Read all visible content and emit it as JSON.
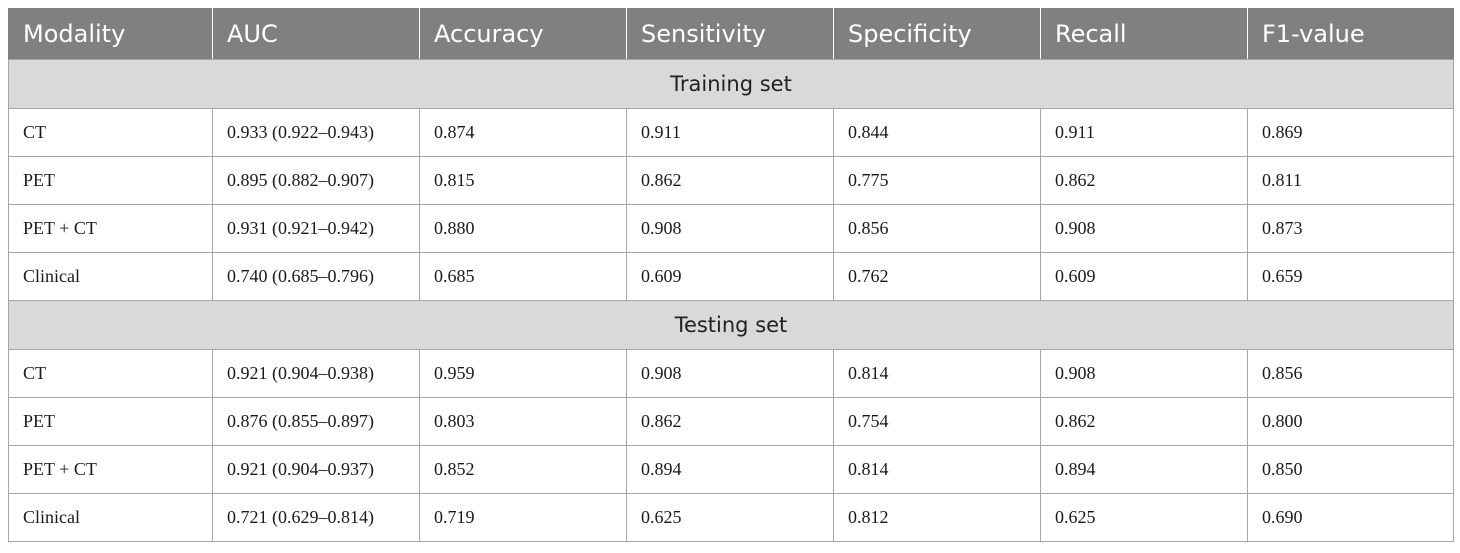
{
  "table": {
    "columns": [
      "Modality",
      "AUC",
      "Accuracy",
      "Sensitivity",
      "Specificity",
      "Recall",
      "F1-value"
    ],
    "sections": [
      {
        "title": "Training set",
        "rows": [
          [
            "CT",
            "0.933 (0.922–0.943)",
            "0.874",
            "0.911",
            "0.844",
            "0.911",
            "0.869"
          ],
          [
            "PET",
            "0.895 (0.882–0.907)",
            "0.815",
            "0.862",
            "0.775",
            "0.862",
            "0.811"
          ],
          [
            "PET + CT",
            "0.931 (0.921–0.942)",
            "0.880",
            "0.908",
            "0.856",
            "0.908",
            "0.873"
          ],
          [
            "Clinical",
            "0.740 (0.685–0.796)",
            "0.685",
            "0.609",
            "0.762",
            "0.609",
            "0.659"
          ]
        ]
      },
      {
        "title": "Testing set",
        "rows": [
          [
            "CT",
            "0.921 (0.904–0.938)",
            "0.959",
            "0.908",
            "0.814",
            "0.908",
            "0.856"
          ],
          [
            "PET",
            "0.876 (0.855–0.897)",
            "0.803",
            "0.862",
            "0.754",
            "0.862",
            "0.800"
          ],
          [
            "PET + CT",
            "0.921 (0.904–0.937)",
            "0.852",
            "0.894",
            "0.814",
            "0.894",
            "0.850"
          ],
          [
            "Clinical",
            "0.721 (0.629–0.814)",
            "0.719",
            "0.625",
            "0.812",
            "0.625",
            "0.690"
          ]
        ]
      }
    ]
  },
  "colors": {
    "header_bg": "#808080",
    "header_text": "#ffffff",
    "section_bg": "#d9d9d9",
    "border": "#a6a6a6"
  }
}
